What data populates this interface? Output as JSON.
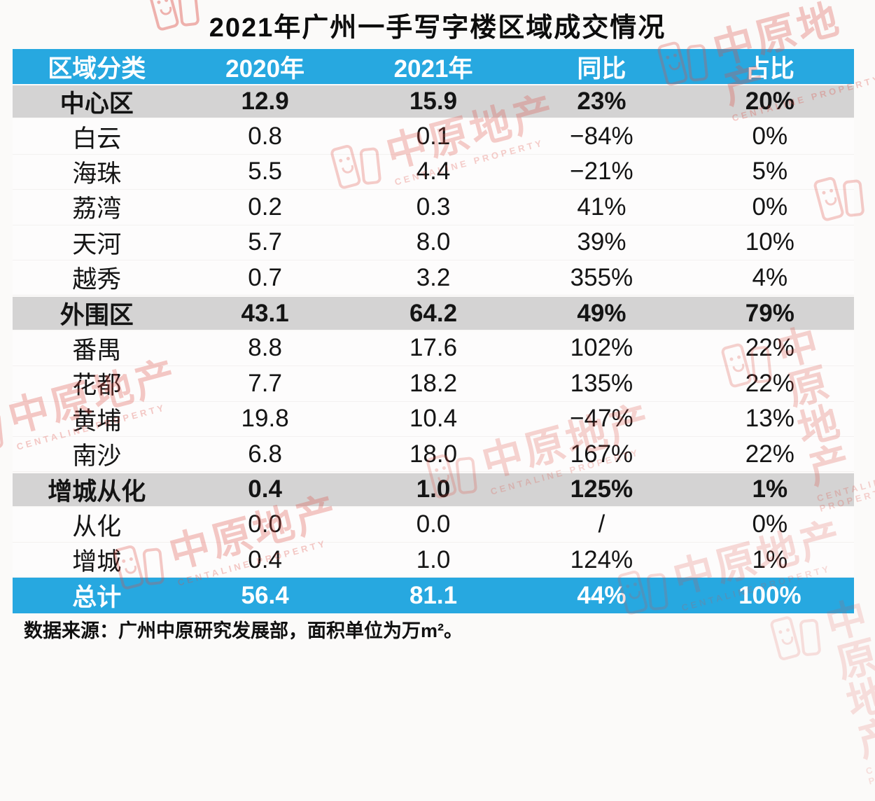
{
  "title": "2021年广州一手写字楼区域成交情况",
  "footnote": "数据来源：广州中原研究发展部，面积单位为万m²。",
  "watermark": {
    "brand": "中原地产",
    "brand_en": "CENTALINE PROPERTY",
    "color": "#dd4f45"
  },
  "colors": {
    "page_bg": "#fbfaf9",
    "header_bg": "#27a8e0",
    "header_text": "#ffffff",
    "section_row_bg": "#d4d3d3",
    "total_row_bg": "#27a8e0",
    "total_row_text": "#ffffff",
    "body_text": "#141414"
  },
  "chart_data": {
    "type": "table",
    "title": "2021年广州一手写字楼区域成交情况",
    "columns": [
      "区域分类",
      "2020年",
      "2021年",
      "同比",
      "占比"
    ],
    "rows": [
      {
        "label": "中心区",
        "style": "section",
        "values": [
          "12.9",
          "15.9",
          "23%",
          "20%"
        ]
      },
      {
        "label": "白云",
        "style": "regular",
        "values": [
          "0.8",
          "0.1",
          "−84%",
          "0%"
        ]
      },
      {
        "label": "海珠",
        "style": "regular",
        "values": [
          "5.5",
          "4.4",
          "−21%",
          "5%"
        ]
      },
      {
        "label": "荔湾",
        "style": "regular",
        "values": [
          "0.2",
          "0.3",
          "41%",
          "0%"
        ]
      },
      {
        "label": "天河",
        "style": "regular",
        "values": [
          "5.7",
          "8.0",
          "39%",
          "10%"
        ]
      },
      {
        "label": "越秀",
        "style": "regular",
        "values": [
          "0.7",
          "3.2",
          "355%",
          "4%"
        ]
      },
      {
        "label": "外围区",
        "style": "section",
        "values": [
          "43.1",
          "64.2",
          "49%",
          "79%"
        ]
      },
      {
        "label": "番禺",
        "style": "regular",
        "values": [
          "8.8",
          "17.6",
          "102%",
          "22%"
        ]
      },
      {
        "label": "花都",
        "style": "regular",
        "values": [
          "7.7",
          "18.2",
          "135%",
          "22%"
        ]
      },
      {
        "label": "黄埔",
        "style": "regular",
        "values": [
          "19.8",
          "10.4",
          "−47%",
          "13%"
        ]
      },
      {
        "label": "南沙",
        "style": "regular",
        "values": [
          "6.8",
          "18.0",
          "167%",
          "22%"
        ]
      },
      {
        "label": "增城从化",
        "style": "section",
        "values": [
          "0.4",
          "1.0",
          "125%",
          "1%"
        ]
      },
      {
        "label": "从化",
        "style": "regular",
        "values": [
          "0.0",
          "0.0",
          "/",
          "0%"
        ]
      },
      {
        "label": "增城",
        "style": "regular",
        "values": [
          "0.4",
          "1.0",
          "124%",
          "1%"
        ]
      },
      {
        "label": "总计",
        "style": "total",
        "values": [
          "56.4",
          "81.1",
          "44%",
          "100%"
        ]
      }
    ],
    "footnote": "数据来源：广州中原研究发展部，面积单位为万m²。"
  }
}
